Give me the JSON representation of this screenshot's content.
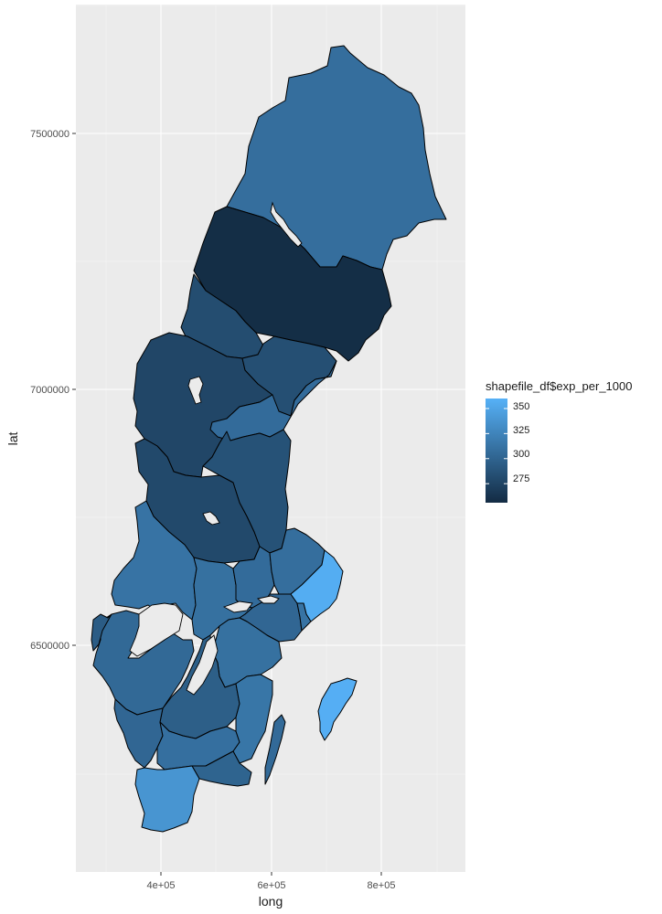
{
  "chart_data": {
    "type": "choropleth",
    "xlabel": "long",
    "ylabel": "lat",
    "x_ticks": [
      "4e+05",
      "6e+05",
      "8e+05"
    ],
    "y_ticks": [
      "6500000",
      "7000000",
      "7500000"
    ],
    "legend": {
      "title": "shapefile_df$exp_per_1000",
      "breaks": [
        "350",
        "325",
        "300",
        "275"
      ],
      "color_low": "#132B43",
      "color_high": "#56B1F7"
    },
    "regions": [
      {
        "value": 308
      },
      {
        "value": 258
      },
      {
        "value": 282
      },
      {
        "value": 277
      },
      {
        "value": 284
      },
      {
        "value": 306
      },
      {
        "value": 286
      },
      {
        "value": 279
      },
      {
        "value": 312
      },
      {
        "value": 310
      },
      {
        "value": 306
      },
      {
        "value": 308
      },
      {
        "value": 302
      },
      {
        "value": 357
      },
      {
        "value": 312
      },
      {
        "value": 310
      },
      {
        "value": 296
      },
      {
        "value": 304
      },
      {
        "value": 294
      },
      {
        "value": 302
      },
      {
        "value": 309
      },
      {
        "value": 314
      },
      {
        "value": 300
      },
      {
        "value": 338
      },
      {
        "value": 358
      }
    ]
  }
}
